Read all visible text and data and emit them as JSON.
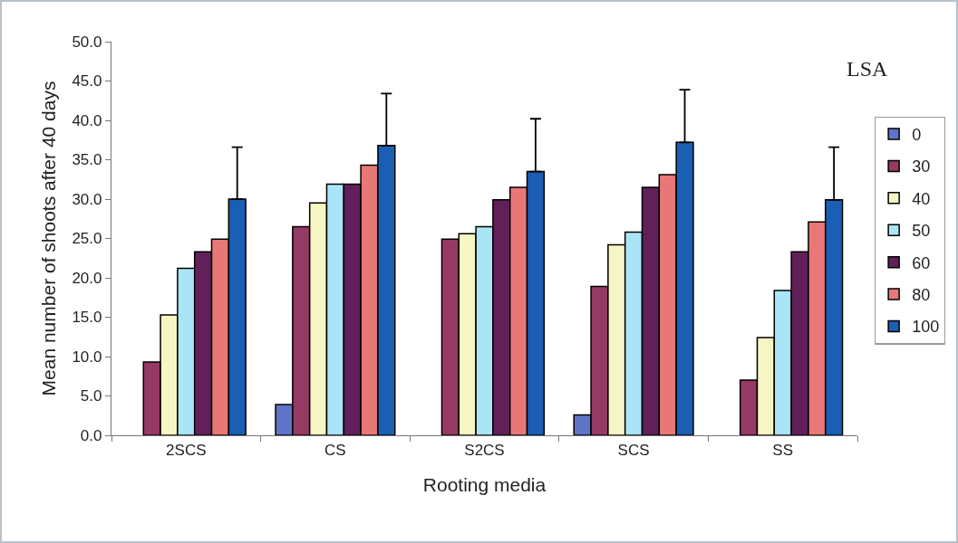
{
  "chart_data": {
    "type": "bar",
    "xlabel": "Rooting media",
    "ylabel": "Mean number of shoots after 40 days",
    "annotations": [
      "LSA"
    ],
    "categories": [
      "2SCS",
      "CS",
      "S2CS",
      "SCS",
      "SS"
    ],
    "series": [
      {
        "name": "0",
        "color": "#5f74c9",
        "values": [
          null,
          3.9,
          null,
          2.6,
          null
        ]
      },
      {
        "name": "30",
        "color": "#953a63",
        "values": [
          9.3,
          26.5,
          24.9,
          18.9,
          7.0
        ]
      },
      {
        "name": "40",
        "color": "#f6f5c4",
        "values": [
          15.3,
          29.5,
          25.6,
          24.2,
          12.4
        ]
      },
      {
        "name": "50",
        "color": "#a9e5f7",
        "values": [
          21.2,
          31.9,
          26.5,
          25.8,
          18.4
        ]
      },
      {
        "name": "60",
        "color": "#62205a",
        "values": [
          23.3,
          31.9,
          29.9,
          31.5,
          23.3
        ]
      },
      {
        "name": "80",
        "color": "#e87878",
        "values": [
          24.9,
          34.3,
          31.5,
          33.1,
          27.1
        ]
      },
      {
        "name": "100",
        "color": "#1a5fb4",
        "values": [
          30.0,
          36.8,
          33.5,
          37.2,
          29.9
        ],
        "errors": [
          [
            30.0,
            36.6
          ],
          [
            36.8,
            43.4
          ],
          [
            33.5,
            40.2
          ],
          [
            37.2,
            43.9
          ],
          [
            29.9,
            36.6
          ]
        ]
      }
    ],
    "ylim": [
      0,
      50
    ],
    "yticks": [
      {
        "value": 0,
        "label": "0.0"
      },
      {
        "value": 5,
        "label": "5.0"
      },
      {
        "value": 10,
        "label": "10.0"
      },
      {
        "value": 15,
        "label": "15.0"
      },
      {
        "value": 20,
        "label": "20.0"
      },
      {
        "value": 25,
        "label": "25.0"
      },
      {
        "value": 30,
        "label": "30.0"
      },
      {
        "value": 35,
        "label": "35.0"
      },
      {
        "value": 40,
        "label": "40.0"
      },
      {
        "value": 45,
        "label": "45.0"
      },
      {
        "value": 50,
        "label": "50.0"
      }
    ],
    "grid": false,
    "legend": "right"
  }
}
